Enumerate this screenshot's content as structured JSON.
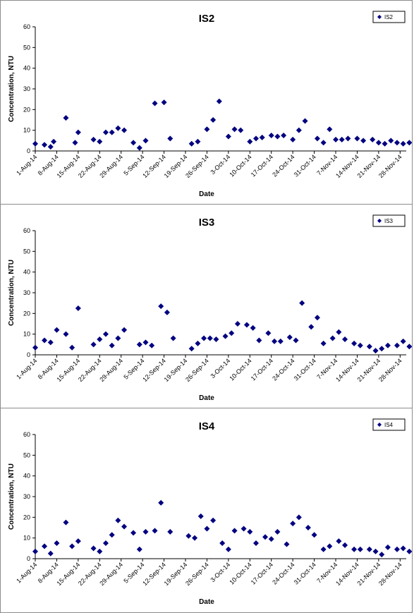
{
  "chart_data": [
    {
      "type": "scatter",
      "title": "IS2",
      "xlabel": "Date",
      "ylabel": "Concentration, NTU",
      "ylim": [
        0,
        60
      ],
      "yticks": [
        0,
        10,
        20,
        30,
        40,
        50,
        60
      ],
      "xlim": [
        "2014-08-01",
        "2014-11-30"
      ],
      "xtick_labels": [
        "1-Aug-14",
        "8-Aug-14",
        "15-Aug-14",
        "22-Aug-14",
        "29-Aug-14",
        "5-Sep-14",
        "12-Sep-14",
        "19-Sep-14",
        "26-Sep-14",
        "3-Oct-14",
        "10-Oct-14",
        "17-Oct-14",
        "24-Oct-14",
        "31-Oct-14",
        "7-Nov-14",
        "14-Nov-14",
        "21-Nov-14",
        "28-Nov-14"
      ],
      "xtick_dates": [
        "2014-08-01",
        "2014-08-08",
        "2014-08-15",
        "2014-08-22",
        "2014-08-29",
        "2014-09-05",
        "2014-09-12",
        "2014-09-19",
        "2014-09-26",
        "2014-10-03",
        "2014-10-10",
        "2014-10-17",
        "2014-10-24",
        "2014-10-31",
        "2014-11-07",
        "2014-11-14",
        "2014-11-21",
        "2014-11-28"
      ],
      "grid": false,
      "legend_position": "top-right",
      "marker_color": "#000080",
      "series": [
        {
          "name": "IS2",
          "points": [
            [
              "2014-08-01",
              3.5
            ],
            [
              "2014-08-04",
              3
            ],
            [
              "2014-08-06",
              2
            ],
            [
              "2014-08-07",
              4.5
            ],
            [
              "2014-08-11",
              16
            ],
            [
              "2014-08-14",
              4
            ],
            [
              "2014-08-15",
              9
            ],
            [
              "2014-08-20",
              5.5
            ],
            [
              "2014-08-22",
              4.5
            ],
            [
              "2014-08-24",
              9
            ],
            [
              "2014-08-26",
              9
            ],
            [
              "2014-08-28",
              11
            ],
            [
              "2014-08-30",
              10
            ],
            [
              "2014-09-02",
              4
            ],
            [
              "2014-09-04",
              1.5
            ],
            [
              "2014-09-06",
              5
            ],
            [
              "2014-09-09",
              23
            ],
            [
              "2014-09-12",
              23.5
            ],
            [
              "2014-09-14",
              6
            ],
            [
              "2014-09-21",
              3.5
            ],
            [
              "2014-09-23",
              4.5
            ],
            [
              "2014-09-26",
              10.5
            ],
            [
              "2014-09-28",
              15
            ],
            [
              "2014-09-30",
              24
            ],
            [
              "2014-10-03",
              7
            ],
            [
              "2014-10-05",
              10.5
            ],
            [
              "2014-10-07",
              10
            ],
            [
              "2014-10-10",
              4.5
            ],
            [
              "2014-10-12",
              6
            ],
            [
              "2014-10-14",
              6.5
            ],
            [
              "2014-10-17",
              7.5
            ],
            [
              "2014-10-19",
              7
            ],
            [
              "2014-10-21",
              7.5
            ],
            [
              "2014-10-24",
              5.5
            ],
            [
              "2014-10-26",
              10
            ],
            [
              "2014-10-28",
              14.5
            ],
            [
              "2014-11-01",
              6
            ],
            [
              "2014-11-03",
              4
            ],
            [
              "2014-11-05",
              10.5
            ],
            [
              "2014-11-07",
              5.5
            ],
            [
              "2014-11-09",
              5.5
            ],
            [
              "2014-11-11",
              6
            ],
            [
              "2014-11-14",
              6
            ],
            [
              "2014-11-16",
              5
            ],
            [
              "2014-11-19",
              5.5
            ],
            [
              "2014-11-21",
              4
            ],
            [
              "2014-11-23",
              3.5
            ],
            [
              "2014-11-25",
              5
            ],
            [
              "2014-11-27",
              4
            ],
            [
              "2014-11-29",
              3.5
            ],
            [
              "2014-12-01",
              4
            ]
          ]
        }
      ]
    },
    {
      "type": "scatter",
      "title": "IS3",
      "xlabel": "Date",
      "ylabel": "Concentration, NTU",
      "ylim": [
        0,
        60
      ],
      "yticks": [
        0,
        10,
        20,
        30,
        40,
        50,
        60
      ],
      "xlim": [
        "2014-08-01",
        "2014-11-30"
      ],
      "xtick_labels": [
        "1-Aug-14",
        "8-Aug-14",
        "15-Aug-14",
        "22-Aug-14",
        "29-Aug-14",
        "5-Sep-14",
        "12-Sep-14",
        "19-Sep-14",
        "26-Sep-14",
        "3-Oct-14",
        "10-Oct-14",
        "17-Oct-14",
        "24-Oct-14",
        "31-Oct-14",
        "7-Nov-14",
        "14-Nov-14",
        "21-Nov-14",
        "28-Nov-14"
      ],
      "xtick_dates": [
        "2014-08-01",
        "2014-08-08",
        "2014-08-15",
        "2014-08-22",
        "2014-08-29",
        "2014-09-05",
        "2014-09-12",
        "2014-09-19",
        "2014-09-26",
        "2014-10-03",
        "2014-10-10",
        "2014-10-17",
        "2014-10-24",
        "2014-10-31",
        "2014-11-07",
        "2014-11-14",
        "2014-11-21",
        "2014-11-28"
      ],
      "grid": false,
      "legend_position": "top-right",
      "marker_color": "#000080",
      "series": [
        {
          "name": "IS3",
          "points": [
            [
              "2014-08-01",
              3.5
            ],
            [
              "2014-08-04",
              7
            ],
            [
              "2014-08-06",
              6
            ],
            [
              "2014-08-08",
              12
            ],
            [
              "2014-08-11",
              10
            ],
            [
              "2014-08-13",
              3.5
            ],
            [
              "2014-08-15",
              22.5
            ],
            [
              "2014-08-20",
              5
            ],
            [
              "2014-08-22",
              7.5
            ],
            [
              "2014-08-24",
              10
            ],
            [
              "2014-08-26",
              4.5
            ],
            [
              "2014-08-28",
              8
            ],
            [
              "2014-08-30",
              12
            ],
            [
              "2014-09-04",
              5
            ],
            [
              "2014-09-06",
              6
            ],
            [
              "2014-09-08",
              4.5
            ],
            [
              "2014-09-11",
              23.5
            ],
            [
              "2014-09-13",
              20.5
            ],
            [
              "2014-09-15",
              8
            ],
            [
              "2014-09-21",
              3
            ],
            [
              "2014-09-23",
              5.5
            ],
            [
              "2014-09-25",
              8
            ],
            [
              "2014-09-27",
              8
            ],
            [
              "2014-09-29",
              7.5
            ],
            [
              "2014-10-02",
              9
            ],
            [
              "2014-10-04",
              10.5
            ],
            [
              "2014-10-06",
              15
            ],
            [
              "2014-10-09",
              14.5
            ],
            [
              "2014-10-11",
              13
            ],
            [
              "2014-10-13",
              7
            ],
            [
              "2014-10-16",
              10.5
            ],
            [
              "2014-10-18",
              6.5
            ],
            [
              "2014-10-20",
              6.5
            ],
            [
              "2014-10-23",
              8.5
            ],
            [
              "2014-10-25",
              7
            ],
            [
              "2014-10-27",
              25
            ],
            [
              "2014-10-30",
              13.5
            ],
            [
              "2014-11-01",
              18
            ],
            [
              "2014-11-03",
              5.5
            ],
            [
              "2014-11-06",
              8
            ],
            [
              "2014-11-08",
              11
            ],
            [
              "2014-11-10",
              7.5
            ],
            [
              "2014-11-13",
              5.5
            ],
            [
              "2014-11-15",
              4.5
            ],
            [
              "2014-11-18",
              4
            ],
            [
              "2014-11-20",
              2
            ],
            [
              "2014-11-22",
              3
            ],
            [
              "2014-11-24",
              4.5
            ],
            [
              "2014-11-27",
              4.5
            ],
            [
              "2014-11-29",
              6.5
            ],
            [
              "2014-12-01",
              4
            ]
          ]
        }
      ]
    },
    {
      "type": "scatter",
      "title": "IS4",
      "xlabel": "Date",
      "ylabel": "Concentration, NTU",
      "ylim": [
        0,
        60
      ],
      "yticks": [
        0,
        10,
        20,
        30,
        40,
        50,
        60
      ],
      "xlim": [
        "2014-08-01",
        "2014-11-30"
      ],
      "xtick_labels": [
        "1-Aug-14",
        "8-Aug-14",
        "15-Aug-14",
        "22-Aug-14",
        "29-Aug-14",
        "5-Sep-14",
        "12-Sep-14",
        "19-Sep-14",
        "26-Sep-14",
        "3-Oct-14",
        "10-Oct-14",
        "17-Oct-14",
        "24-Oct-14",
        "31-Oct-14",
        "7-Nov-14",
        "14-Nov-14",
        "21-Nov-14",
        "28-Nov-14"
      ],
      "xtick_dates": [
        "2014-08-01",
        "2014-08-08",
        "2014-08-15",
        "2014-08-22",
        "2014-08-29",
        "2014-09-05",
        "2014-09-12",
        "2014-09-19",
        "2014-09-26",
        "2014-10-03",
        "2014-10-10",
        "2014-10-17",
        "2014-10-24",
        "2014-10-31",
        "2014-11-07",
        "2014-11-14",
        "2014-11-21",
        "2014-11-28"
      ],
      "grid": false,
      "legend_position": "top-right",
      "marker_color": "#000080",
      "series": [
        {
          "name": "IS4",
          "points": [
            [
              "2014-08-01",
              3.5
            ],
            [
              "2014-08-04",
              6
            ],
            [
              "2014-08-06",
              2.5
            ],
            [
              "2014-08-08",
              7.5
            ],
            [
              "2014-08-11",
              17.5
            ],
            [
              "2014-08-13",
              6
            ],
            [
              "2014-08-15",
              8.5
            ],
            [
              "2014-08-20",
              5
            ],
            [
              "2014-08-22",
              3.5
            ],
            [
              "2014-08-24",
              7.5
            ],
            [
              "2014-08-26",
              11.5
            ],
            [
              "2014-08-28",
              18.5
            ],
            [
              "2014-08-30",
              15.5
            ],
            [
              "2014-09-02",
              12.5
            ],
            [
              "2014-09-04",
              4.5
            ],
            [
              "2014-09-06",
              13
            ],
            [
              "2014-09-09",
              13.5
            ],
            [
              "2014-09-11",
              27
            ],
            [
              "2014-09-14",
              13
            ],
            [
              "2014-09-20",
              11
            ],
            [
              "2014-09-22",
              10
            ],
            [
              "2014-09-24",
              20.5
            ],
            [
              "2014-09-26",
              14.5
            ],
            [
              "2014-09-28",
              18.5
            ],
            [
              "2014-10-01",
              7.5
            ],
            [
              "2014-10-03",
              4.5
            ],
            [
              "2014-10-05",
              13.5
            ],
            [
              "2014-10-08",
              14.5
            ],
            [
              "2014-10-10",
              13
            ],
            [
              "2014-10-12",
              7.5
            ],
            [
              "2014-10-15",
              10.5
            ],
            [
              "2014-10-17",
              9.5
            ],
            [
              "2014-10-19",
              13
            ],
            [
              "2014-10-22",
              7
            ],
            [
              "2014-10-24",
              17
            ],
            [
              "2014-10-26",
              20
            ],
            [
              "2014-10-29",
              15
            ],
            [
              "2014-10-31",
              11.5
            ],
            [
              "2014-11-03",
              4.5
            ],
            [
              "2014-11-05",
              6
            ],
            [
              "2014-11-08",
              8.5
            ],
            [
              "2014-11-10",
              6.5
            ],
            [
              "2014-11-13",
              4.5
            ],
            [
              "2014-11-15",
              4.5
            ],
            [
              "2014-11-18",
              4.5
            ],
            [
              "2014-11-20",
              3.5
            ],
            [
              "2014-11-22",
              2
            ],
            [
              "2014-11-24",
              5.5
            ],
            [
              "2014-11-27",
              4.5
            ],
            [
              "2014-11-29",
              5
            ],
            [
              "2014-12-01",
              3.5
            ]
          ]
        }
      ]
    }
  ]
}
